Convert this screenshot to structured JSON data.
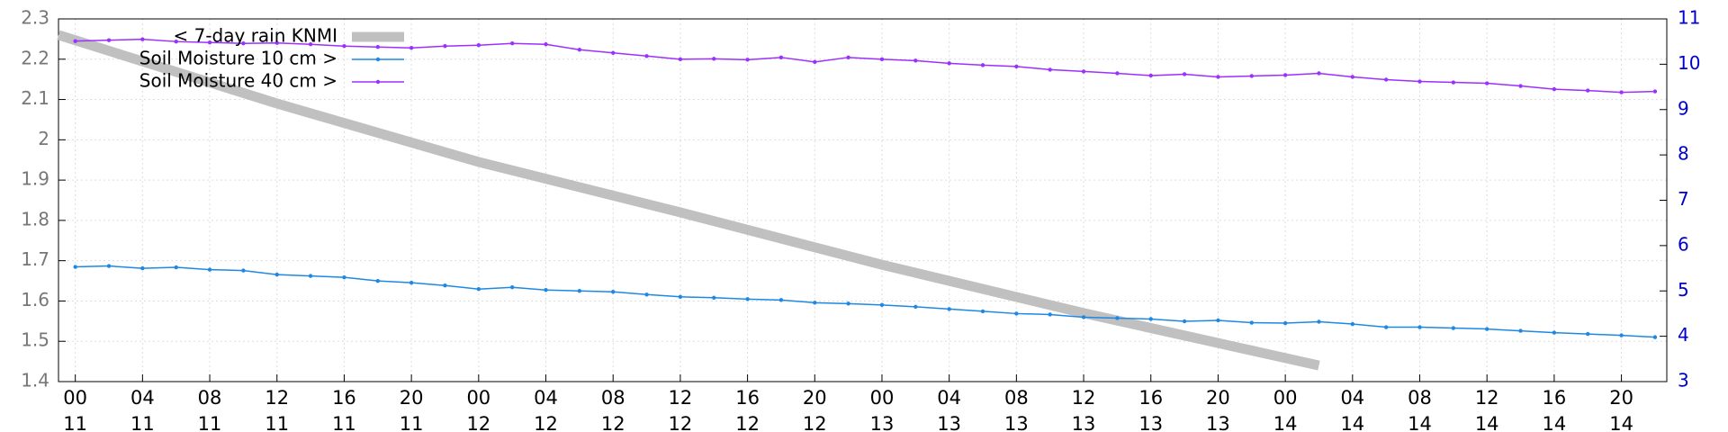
{
  "chart_data": {
    "type": "line",
    "xlim": [
      -1,
      94.7
    ],
    "xticks": [
      {
        "value": 0,
        "label": "00\n11"
      },
      {
        "value": 4,
        "label": "04\n11"
      },
      {
        "value": 8,
        "label": "08\n11"
      },
      {
        "value": 12,
        "label": "12\n11"
      },
      {
        "value": 16,
        "label": "16\n11"
      },
      {
        "value": 20,
        "label": "20\n11"
      },
      {
        "value": 24,
        "label": "00\n12"
      },
      {
        "value": 28,
        "label": "04\n12"
      },
      {
        "value": 32,
        "label": "08\n12"
      },
      {
        "value": 36,
        "label": "12\n12"
      },
      {
        "value": 40,
        "label": "16\n12"
      },
      {
        "value": 44,
        "label": "20\n12"
      },
      {
        "value": 48,
        "label": "00\n13"
      },
      {
        "value": 52,
        "label": "04\n13"
      },
      {
        "value": 56,
        "label": "08\n13"
      },
      {
        "value": 60,
        "label": "12\n13"
      },
      {
        "value": 64,
        "label": "16\n13"
      },
      {
        "value": 68,
        "label": "20\n13"
      },
      {
        "value": 72,
        "label": "00\n14"
      },
      {
        "value": 76,
        "label": "04\n14"
      },
      {
        "value": 80,
        "label": "08\n14"
      },
      {
        "value": 84,
        "label": "12\n14"
      },
      {
        "value": 88,
        "label": "16\n14"
      },
      {
        "value": 92,
        "label": "20\n14"
      }
    ],
    "ylim": [
      1.4,
      2.3
    ],
    "yticks": [
      1.4,
      1.5,
      1.6,
      1.7,
      1.8,
      1.9,
      2,
      2.1,
      2.2,
      2.3
    ],
    "y2lim": [
      3,
      11
    ],
    "y2ticks": [
      3,
      4,
      5,
      6,
      7,
      8,
      9,
      10,
      11
    ],
    "grid": true,
    "legend": "top-left",
    "series": [
      {
        "name": "< 7-day rain KNMI",
        "color": "#c0c0c0",
        "axis": "y",
        "x": [
          -1,
          12,
          24,
          36,
          48,
          60,
          74
        ],
        "values": [
          2.26,
          2.09,
          1.945,
          1.82,
          1.69,
          1.57,
          1.44
        ]
      },
      {
        "name": "Soil Moisture 10 cm >",
        "color": "#1e88e5",
        "axis": "y2",
        "x": [
          0,
          2,
          4,
          6,
          8,
          10,
          12,
          14,
          16,
          18,
          20,
          22,
          24,
          26,
          28,
          30,
          32,
          34,
          36,
          38,
          40,
          42,
          44,
          46,
          48,
          50,
          52,
          54,
          56,
          58,
          60,
          62,
          64,
          66,
          68,
          70,
          72,
          74,
          76,
          78,
          80,
          82,
          84,
          86,
          88,
          90,
          92,
          94
        ],
        "values": [
          5.53,
          5.55,
          5.5,
          5.52,
          5.47,
          5.45,
          5.36,
          5.33,
          5.3,
          5.22,
          5.18,
          5.12,
          5.04,
          5.08,
          5.02,
          5.0,
          4.98,
          4.92,
          4.87,
          4.85,
          4.82,
          4.8,
          4.74,
          4.72,
          4.69,
          4.65,
          4.6,
          4.55,
          4.5,
          4.48,
          4.42,
          4.4,
          4.38,
          4.33,
          4.35,
          4.3,
          4.29,
          4.32,
          4.27,
          4.2,
          4.2,
          4.18,
          4.16,
          4.12,
          4.08,
          4.05,
          4.02,
          3.98
        ]
      },
      {
        "name": "Soil Moisture 40 cm >",
        "color": "#9b30ff",
        "axis": "y2",
        "x": [
          0,
          2,
          4,
          6,
          8,
          10,
          12,
          14,
          16,
          18,
          20,
          22,
          24,
          26,
          28,
          30,
          32,
          34,
          36,
          38,
          40,
          42,
          44,
          46,
          48,
          50,
          52,
          54,
          56,
          58,
          60,
          62,
          64,
          66,
          68,
          70,
          72,
          74,
          76,
          78,
          80,
          82,
          84,
          86,
          88,
          90,
          92,
          94
        ],
        "values": [
          10.51,
          10.53,
          10.55,
          10.5,
          10.48,
          10.46,
          10.47,
          10.44,
          10.4,
          10.38,
          10.36,
          10.4,
          10.42,
          10.46,
          10.44,
          10.32,
          10.25,
          10.18,
          10.11,
          10.12,
          10.1,
          10.15,
          10.05,
          10.15,
          10.11,
          10.08,
          10.02,
          9.98,
          9.95,
          9.88,
          9.84,
          9.8,
          9.75,
          9.78,
          9.72,
          9.74,
          9.76,
          9.8,
          9.72,
          9.66,
          9.62,
          9.6,
          9.58,
          9.52,
          9.45,
          9.42,
          9.38,
          9.4
        ]
      }
    ]
  }
}
